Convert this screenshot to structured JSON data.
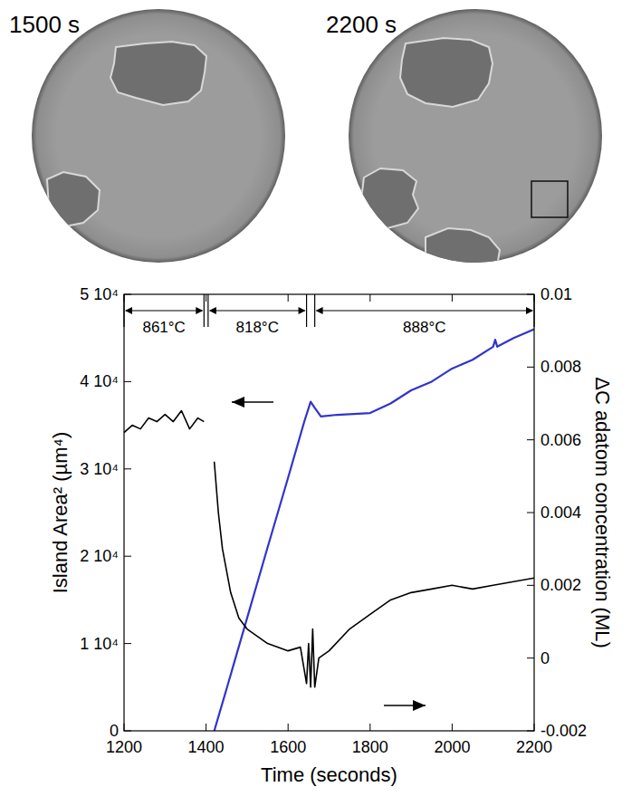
{
  "images": [
    {
      "label": "1500 s"
    },
    {
      "label": "2200 s"
    }
  ],
  "chart_data": {
    "type": "line",
    "x_label": "Time (seconds)",
    "y_label": "Island Area² (µm⁴)",
    "y2_label": "ΔC adatom concentration (ML)",
    "xlim": [
      1200,
      2200
    ],
    "xticks": [
      1200,
      1400,
      1600,
      1800,
      2000,
      2200
    ],
    "ylim": [
      0,
      50000
    ],
    "yticks": [
      0,
      {
        "value": 10000,
        "label": "1 10⁴"
      },
      {
        "value": 20000,
        "label": "2 10⁴"
      },
      {
        "value": 30000,
        "label": "3 10⁴"
      },
      {
        "value": 40000,
        "label": "4 10⁴"
      },
      {
        "value": 50000,
        "label": "5 10⁴"
      }
    ],
    "y2lim": [
      -0.002,
      0.01
    ],
    "y2ticks": [
      -0.002,
      0,
      0.002,
      0.004,
      0.006,
      0.008,
      0.01
    ],
    "annotations": [
      {
        "text": "861°C",
        "x": [
          1200,
          1395
        ]
      },
      {
        "text": "818°C",
        "x": [
          1405,
          1645
        ]
      },
      {
        "text": "888°C",
        "x": [
          1665,
          2200
        ]
      }
    ],
    "series": [
      {
        "color": "#3333cc",
        "axis": "y",
        "x": [
          1420,
          1450,
          1500,
          1550,
          1600,
          1640,
          1655,
          1665,
          1680,
          1720,
          1800,
          1850,
          1900,
          1950,
          2000,
          2050,
          2100,
          2105,
          2110,
          2150,
          2200
        ],
        "values": [
          0,
          4800,
          12900,
          21000,
          29000,
          35500,
          37700,
          37000,
          36000,
          36200,
          36400,
          37500,
          39000,
          40000,
          41500,
          42500,
          44000,
          44800,
          44000,
          45000,
          46000
        ]
      },
      {
        "color": "#000000",
        "axis": "y2",
        "x": [
          1200,
          1220,
          1240,
          1260,
          1280,
          1300,
          1320,
          1340,
          1360,
          1380,
          1395,
          1405,
          1420,
          1430,
          1440,
          1460,
          1480,
          1500,
          1550,
          1600,
          1630,
          1645,
          1650,
          1655,
          1660,
          1665,
          1675,
          1700,
          1750,
          1800,
          1850,
          1900,
          1950,
          2000,
          2050,
          2100,
          2150,
          2200
        ],
        "values": [
          0.0062,
          0.0064,
          0.0063,
          0.0066,
          0.0065,
          0.0067,
          0.0065,
          0.0068,
          0.0063,
          0.0066,
          0.0065,
          null,
          0.0054,
          0.004,
          0.003,
          0.0018,
          0.0011,
          0.0008,
          0.0004,
          0.0002,
          0.0003,
          -0.0007,
          0.0004,
          -0.0008,
          0.0008,
          -0.0008,
          0,
          0.0002,
          0.0008,
          0.0012,
          0.0016,
          0.0018,
          0.0019,
          0.002,
          0.0019,
          0.002,
          0.0021,
          0.0022
        ]
      }
    ]
  }
}
